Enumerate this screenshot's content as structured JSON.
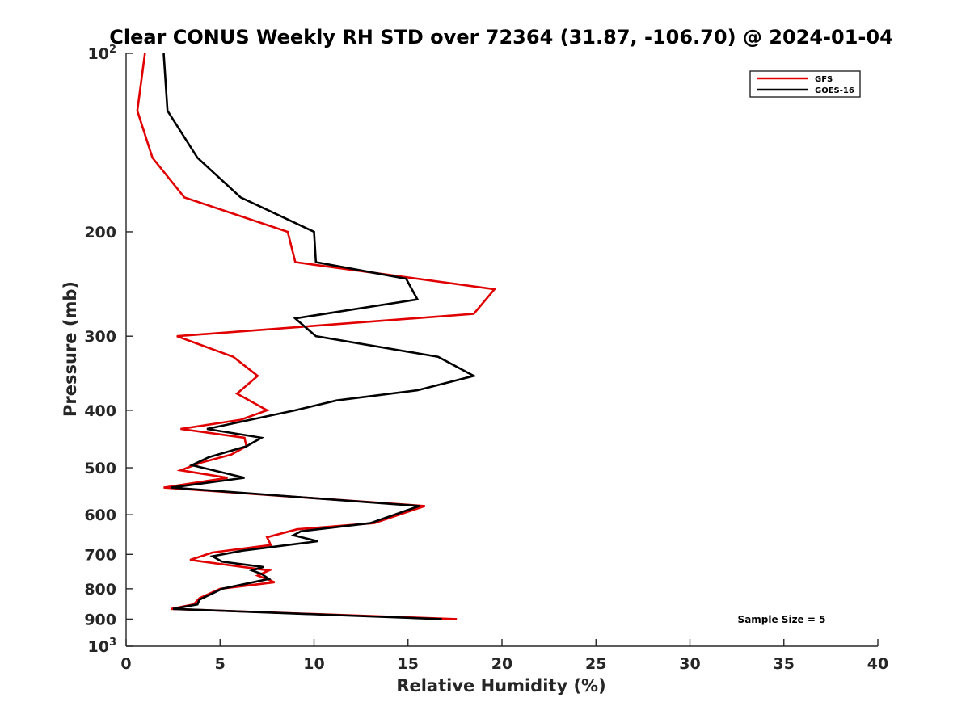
{
  "chart_data": {
    "type": "line",
    "title": "Clear CONUS Weekly RH STD over 72364 (31.87, -106.70) @ 2024-01-04",
    "xlabel": "Relative Humidity (%)",
    "ylabel": "Pressure (mb)",
    "xlim": [
      0,
      40
    ],
    "ylim": [
      100,
      1000
    ],
    "y_scale": "log",
    "y_reversed": true,
    "x_ticks": [
      "0",
      "5",
      "10",
      "15",
      "20",
      "25",
      "30",
      "35",
      "40"
    ],
    "y_tick_values": [
      100,
      200,
      300,
      400,
      500,
      600,
      700,
      800,
      900,
      1000
    ],
    "y_tick_labels": [
      {
        "base": "10",
        "exp": "2"
      },
      {
        "base": "200"
      },
      {
        "base": "300"
      },
      {
        "base": "400"
      },
      {
        "base": "500"
      },
      {
        "base": "600"
      },
      {
        "base": "700"
      },
      {
        "base": "800"
      },
      {
        "base": "900"
      },
      {
        "base": "10",
        "exp": "3"
      }
    ],
    "grid": false,
    "legend_position": "top-right",
    "annotation": "Sample Size = 5",
    "series": [
      {
        "name": "GFS",
        "color": "#e00000",
        "points": [
          [
            1.0,
            100
          ],
          [
            0.6,
            125
          ],
          [
            1.4,
            150
          ],
          [
            3.1,
            175
          ],
          [
            8.6,
            200
          ],
          [
            9.0,
            225
          ],
          [
            19.6,
            250
          ],
          [
            18.5,
            275
          ],
          [
            2.7,
            300
          ],
          [
            5.7,
            325
          ],
          [
            7.0,
            350
          ],
          [
            5.9,
            375
          ],
          [
            7.5,
            400
          ],
          [
            6.1,
            415
          ],
          [
            2.9,
            430
          ],
          [
            6.3,
            445
          ],
          [
            6.4,
            460
          ],
          [
            5.6,
            475
          ],
          [
            4.0,
            490
          ],
          [
            2.9,
            505
          ],
          [
            5.4,
            520
          ],
          [
            2.0,
            540
          ],
          [
            15.9,
            580
          ],
          [
            13.2,
            620
          ],
          [
            9.1,
            635
          ],
          [
            7.5,
            655
          ],
          [
            7.7,
            675
          ],
          [
            4.6,
            695
          ],
          [
            3.4,
            715
          ],
          [
            7.6,
            745
          ],
          [
            7.0,
            760
          ],
          [
            7.9,
            780
          ],
          [
            5.0,
            800
          ],
          [
            3.9,
            830
          ],
          [
            3.6,
            850
          ],
          [
            2.4,
            865
          ],
          [
            17.6,
            900
          ]
        ]
      },
      {
        "name": "GOES-16",
        "color": "#000000",
        "points": [
          [
            2.0,
            100
          ],
          [
            2.2,
            125
          ],
          [
            3.8,
            150
          ],
          [
            6.1,
            175
          ],
          [
            8.5,
            190
          ],
          [
            10.0,
            200
          ],
          [
            10.1,
            225
          ],
          [
            14.9,
            240
          ],
          [
            15.5,
            260
          ],
          [
            9.0,
            280
          ],
          [
            10.1,
            300
          ],
          [
            16.6,
            325
          ],
          [
            18.5,
            350
          ],
          [
            15.5,
            370
          ],
          [
            11.2,
            385
          ],
          [
            9.0,
            400
          ],
          [
            4.3,
            430
          ],
          [
            7.2,
            445
          ],
          [
            6.4,
            460
          ],
          [
            4.4,
            480
          ],
          [
            3.5,
            495
          ],
          [
            6.3,
            520
          ],
          [
            2.4,
            540
          ],
          [
            15.6,
            580
          ],
          [
            13.0,
            620
          ],
          [
            9.3,
            640
          ],
          [
            8.9,
            650
          ],
          [
            10.2,
            665
          ],
          [
            6.2,
            690
          ],
          [
            4.6,
            705
          ],
          [
            5.1,
            720
          ],
          [
            7.3,
            735
          ],
          [
            6.7,
            745
          ],
          [
            7.2,
            755
          ],
          [
            7.6,
            770
          ],
          [
            5.1,
            800
          ],
          [
            3.9,
            835
          ],
          [
            3.8,
            850
          ],
          [
            2.5,
            865
          ],
          [
            16.8,
            900
          ]
        ]
      }
    ]
  }
}
